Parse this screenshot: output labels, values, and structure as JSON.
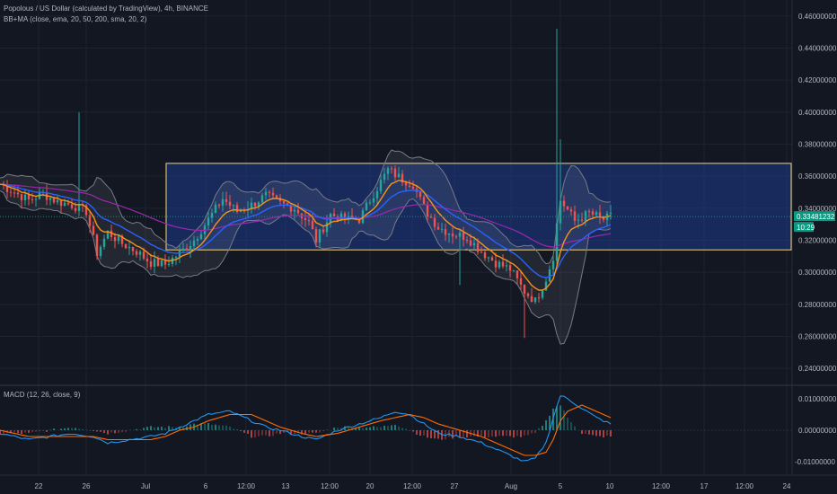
{
  "header": {
    "title": "Popolous / US Dollar (calculated by TradingView), 4h, BINANCE",
    "indicator": "BB+MA (close, ema, 20, 50, 200, sma, 20, 2)"
  },
  "macd_header": {
    "label": "MACD (12, 26, close, 9)"
  },
  "colors": {
    "background": "#131722",
    "grid": "#1f2330",
    "candle_up": "#26a69a",
    "candle_down": "#ef5350",
    "ema20": "#f7931a",
    "ema50": "#2962ff",
    "ema200": "#9c27b0",
    "bb": "#787b86",
    "range_box": "#1e3a8a",
    "range_border": "#f5d67b",
    "macd": "#2196f3",
    "signal": "#ff6d00",
    "hist_up": "#26a69a",
    "hist_down": "#ef5350",
    "last_price_bg": "#089981"
  },
  "chart_data": [
    {
      "type": "candlestick",
      "ylim": [
        0.23,
        0.47
      ],
      "y_ticks": [
        "0.46000000",
        "0.44000000",
        "0.42000000",
        "0.40000000",
        "0.38000000",
        "0.36000000",
        "0.34000000",
        "0.32000000",
        "0.30000000",
        "0.28000000",
        "0.26000000",
        "0.24000000"
      ],
      "y_tick_values": [
        0.46,
        0.44,
        0.42,
        0.4,
        0.38,
        0.36,
        0.34,
        0.32,
        0.3,
        0.28,
        0.26,
        0.24
      ],
      "x_ticks": [
        "22",
        "26",
        "Jul",
        "6",
        "12:00",
        "13",
        "12:00",
        "20",
        "12:00",
        "27",
        "Aug",
        "5",
        "10",
        "12:00",
        "17",
        "12:00",
        "24"
      ],
      "range_box": {
        "top": 0.368,
        "bottom": 0.314
      },
      "last_price": "0.33481232",
      "countdown": "10:29",
      "last_value": 0.3348,
      "close_path": [
        [
          0,
          0.355
        ],
        [
          4,
          0.35
        ],
        [
          8,
          0.345
        ],
        [
          12,
          0.349
        ],
        [
          16,
          0.344
        ],
        [
          20,
          0.342
        ],
        [
          24,
          0.338
        ],
        [
          27,
          0.312
        ],
        [
          30,
          0.325
        ],
        [
          34,
          0.318
        ],
        [
          38,
          0.313
        ],
        [
          42,
          0.306
        ],
        [
          46,
          0.305
        ],
        [
          50,
          0.312
        ],
        [
          54,
          0.32
        ],
        [
          58,
          0.333
        ],
        [
          62,
          0.346
        ],
        [
          66,
          0.338
        ],
        [
          70,
          0.342
        ],
        [
          74,
          0.348
        ],
        [
          78,
          0.343
        ],
        [
          82,
          0.34
        ],
        [
          86,
          0.331
        ],
        [
          88,
          0.32
        ],
        [
          92,
          0.336
        ],
        [
          96,
          0.333
        ],
        [
          100,
          0.333
        ],
        [
          104,
          0.349
        ],
        [
          108,
          0.364
        ],
        [
          112,
          0.358
        ],
        [
          115,
          0.355
        ],
        [
          118,
          0.34
        ],
        [
          122,
          0.328
        ],
        [
          126,
          0.324
        ],
        [
          130,
          0.322
        ],
        [
          134,
          0.313
        ],
        [
          138,
          0.306
        ],
        [
          142,
          0.302
        ],
        [
          146,
          0.288
        ],
        [
          149,
          0.282
        ],
        [
          152,
          0.296
        ],
        [
          154,
          0.31
        ],
        [
          155,
          0.33
        ],
        [
          156,
          0.345
        ],
        [
          158,
          0.339
        ],
        [
          160,
          0.332
        ],
        [
          164,
          0.337
        ],
        [
          168,
          0.333
        ],
        [
          170,
          0.3348
        ]
      ]
    },
    {
      "type": "macd",
      "ylim": [
        -0.014,
        0.014
      ],
      "y_ticks": [
        "0.01000000",
        "0.00000000",
        "-0.01000000"
      ],
      "y_tick_values": [
        0.01,
        0.0,
        -0.01
      ],
      "macd_path": [
        [
          0,
          -0.001
        ],
        [
          8,
          -0.003
        ],
        [
          14,
          -0.002
        ],
        [
          20,
          -0.001
        ],
        [
          26,
          -0.002
        ],
        [
          30,
          -0.004
        ],
        [
          36,
          -0.003
        ],
        [
          42,
          -0.002
        ],
        [
          46,
          -0.001
        ],
        [
          50,
          0.001
        ],
        [
          54,
          0.003
        ],
        [
          58,
          0.005
        ],
        [
          64,
          0.006
        ],
        [
          70,
          0.003
        ],
        [
          74,
          0.001
        ],
        [
          78,
          0.0
        ],
        [
          84,
          -0.002
        ],
        [
          88,
          -0.003
        ],
        [
          94,
          0.0
        ],
        [
          100,
          0.002
        ],
        [
          106,
          0.004
        ],
        [
          110,
          0.006
        ],
        [
          114,
          0.005
        ],
        [
          118,
          0.002
        ],
        [
          122,
          -0.001
        ],
        [
          128,
          -0.002
        ],
        [
          134,
          -0.004
        ],
        [
          138,
          -0.006
        ],
        [
          142,
          -0.008
        ],
        [
          146,
          -0.01
        ],
        [
          149,
          -0.009
        ],
        [
          152,
          -0.004
        ],
        [
          154,
          0.004
        ],
        [
          156,
          0.011
        ],
        [
          158,
          0.01
        ],
        [
          162,
          0.007
        ],
        [
          166,
          0.004
        ],
        [
          170,
          0.002
        ]
      ],
      "signal_path": [
        [
          0,
          0.0
        ],
        [
          8,
          -0.002
        ],
        [
          14,
          -0.002
        ],
        [
          20,
          -0.002
        ],
        [
          26,
          -0.002
        ],
        [
          30,
          -0.003
        ],
        [
          36,
          -0.003
        ],
        [
          42,
          -0.003
        ],
        [
          46,
          -0.002
        ],
        [
          50,
          0.0
        ],
        [
          54,
          0.001
        ],
        [
          58,
          0.003
        ],
        [
          64,
          0.005
        ],
        [
          70,
          0.005
        ],
        [
          74,
          0.003
        ],
        [
          78,
          0.001
        ],
        [
          84,
          -0.001
        ],
        [
          88,
          -0.002
        ],
        [
          94,
          -0.001
        ],
        [
          100,
          0.001
        ],
        [
          106,
          0.003
        ],
        [
          110,
          0.004
        ],
        [
          114,
          0.005
        ],
        [
          118,
          0.004
        ],
        [
          122,
          0.002
        ],
        [
          128,
          0.0
        ],
        [
          134,
          -0.002
        ],
        [
          138,
          -0.004
        ],
        [
          142,
          -0.006
        ],
        [
          146,
          -0.008
        ],
        [
          149,
          -0.008
        ],
        [
          152,
          -0.007
        ],
        [
          154,
          -0.003
        ],
        [
          156,
          0.003
        ],
        [
          158,
          0.006
        ],
        [
          162,
          0.008
        ],
        [
          166,
          0.006
        ],
        [
          170,
          0.004
        ]
      ]
    }
  ]
}
